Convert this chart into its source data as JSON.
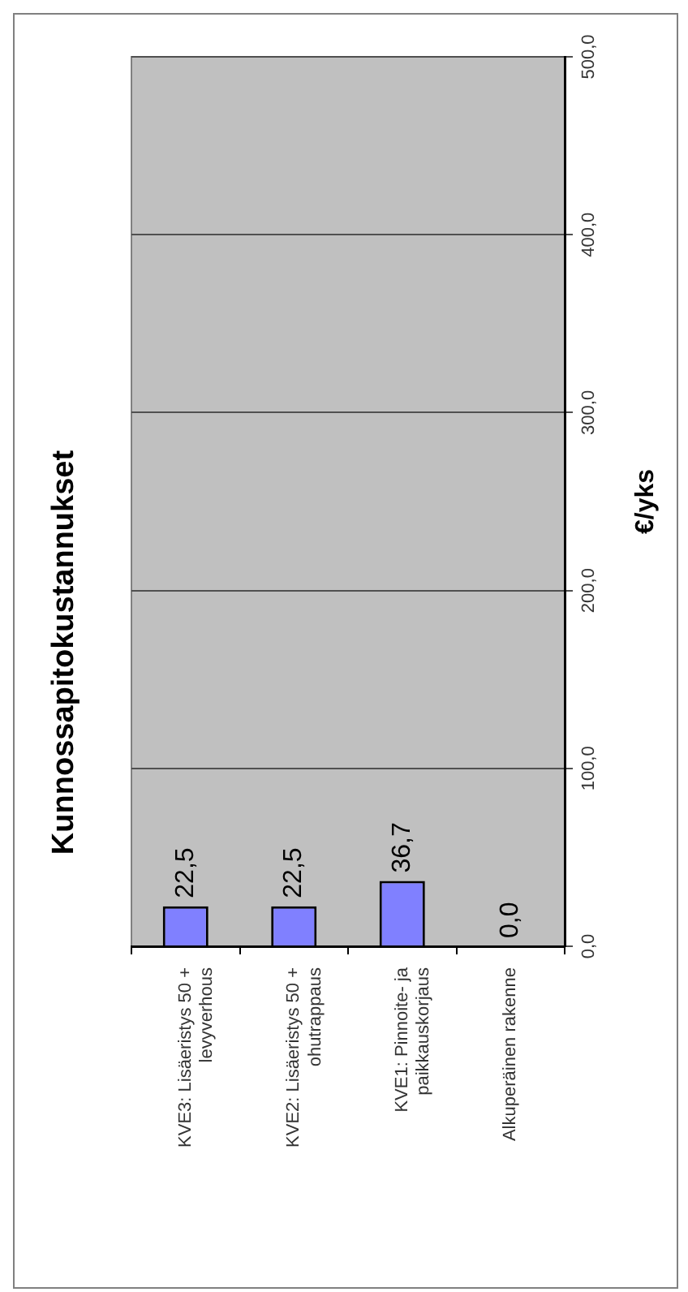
{
  "chart_data": {
    "type": "bar",
    "title": "Kunnossapitokustannukset",
    "ylabel": "€/yks",
    "categories": [
      "KVE3: Lisäeristys 50 + levyverhous",
      "KVE2: Lisäeristys 50 + ohutrappaus",
      "KVE1: Pinnoite- ja paikkauskorjaus",
      "Alkuperäinen rakenne"
    ],
    "values": [
      22.5,
      22.5,
      36.7,
      0.0
    ],
    "value_labels": [
      "22,5",
      "22,5",
      "36,7",
      "0,0"
    ],
    "color": "#8080ff",
    "ylim": [
      0,
      500
    ],
    "yticks": [
      {
        "value": 0,
        "label": "0,0"
      },
      {
        "value": 100,
        "label": "100,0"
      },
      {
        "value": 200,
        "label": "200,0"
      },
      {
        "value": 300,
        "label": "300,0"
      },
      {
        "value": 400,
        "label": "400,0"
      },
      {
        "value": 500,
        "label": "500,0"
      }
    ],
    "grid": "y",
    "legend": false
  }
}
